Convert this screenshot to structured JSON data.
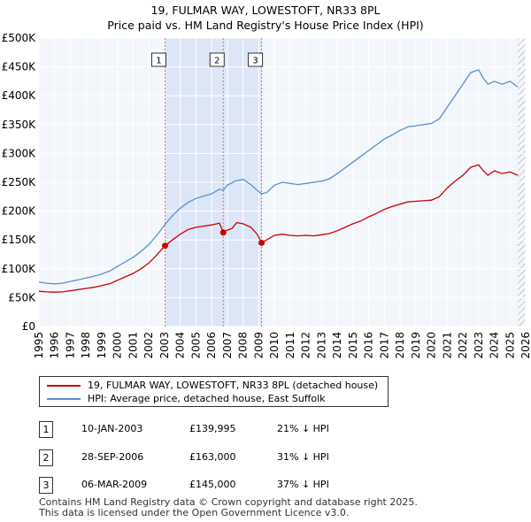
{
  "chart_data": {
    "type": "line",
    "title": "19, FULMAR WAY, LOWESTOFT, NR33 8PL",
    "subtitle": "Price paid vs. HM Land Registry's House Price Index (HPI)",
    "xlim": [
      1995,
      2026
    ],
    "ylim": [
      0,
      500000
    ],
    "x_ticks": [
      "1995",
      "1996",
      "1997",
      "1998",
      "1999",
      "2000",
      "2001",
      "2002",
      "2003",
      "2004",
      "2005",
      "2006",
      "2007",
      "2008",
      "2009",
      "2010",
      "2011",
      "2012",
      "2013",
      "2014",
      "2015",
      "2016",
      "2017",
      "2018",
      "2019",
      "2020",
      "2021",
      "2022",
      "2023",
      "2024",
      "2025",
      "2026"
    ],
    "y_ticks": [
      {
        "value": 0,
        "label": "£0"
      },
      {
        "value": 50000,
        "label": "£50K"
      },
      {
        "value": 100000,
        "label": "£100K"
      },
      {
        "value": 150000,
        "label": "£150K"
      },
      {
        "value": 200000,
        "label": "£200K"
      },
      {
        "value": 250000,
        "label": "£250K"
      },
      {
        "value": 300000,
        "label": "£300K"
      },
      {
        "value": 350000,
        "label": "£350K"
      },
      {
        "value": 400000,
        "label": "£400K"
      },
      {
        "value": 450000,
        "label": "£450K"
      },
      {
        "value": 500000,
        "label": "£500K"
      }
    ],
    "series": [
      {
        "name": "19, FULMAR WAY, LOWESTOFT, NR33 8PL (detached house)",
        "color": "#cc0000",
        "points": [
          [
            1995.0,
            61000
          ],
          [
            1995.5,
            60000
          ],
          [
            1996.0,
            59500
          ],
          [
            1996.5,
            60000
          ],
          [
            1997.0,
            62000
          ],
          [
            1997.5,
            64000
          ],
          [
            1998.0,
            66000
          ],
          [
            1998.5,
            68000
          ],
          [
            1999.0,
            71000
          ],
          [
            1999.5,
            74000
          ],
          [
            2000.0,
            80000
          ],
          [
            2000.5,
            86000
          ],
          [
            2001.0,
            92000
          ],
          [
            2001.5,
            100000
          ],
          [
            2002.0,
            110000
          ],
          [
            2002.5,
            124000
          ],
          [
            2003.03,
            139995
          ],
          [
            2003.5,
            150000
          ],
          [
            2004.0,
            160000
          ],
          [
            2004.5,
            168000
          ],
          [
            2005.0,
            172000
          ],
          [
            2005.5,
            174000
          ],
          [
            2006.0,
            176000
          ],
          [
            2006.5,
            179000
          ],
          [
            2006.74,
            163000
          ],
          [
            2007.0,
            167000
          ],
          [
            2007.3,
            170000
          ],
          [
            2007.6,
            180000
          ],
          [
            2008.0,
            178000
          ],
          [
            2008.5,
            172000
          ],
          [
            2008.9,
            160000
          ],
          [
            2009.18,
            145000
          ],
          [
            2009.5,
            150000
          ],
          [
            2010.0,
            158000
          ],
          [
            2010.5,
            160000
          ],
          [
            2011.0,
            158000
          ],
          [
            2011.5,
            157000
          ],
          [
            2012.0,
            158000
          ],
          [
            2012.5,
            157000
          ],
          [
            2013.0,
            159000
          ],
          [
            2013.5,
            161000
          ],
          [
            2014.0,
            166000
          ],
          [
            2014.5,
            172000
          ],
          [
            2015.0,
            178000
          ],
          [
            2015.5,
            183000
          ],
          [
            2016.0,
            190000
          ],
          [
            2016.5,
            196000
          ],
          [
            2017.0,
            203000
          ],
          [
            2017.5,
            208000
          ],
          [
            2018.0,
            212000
          ],
          [
            2018.5,
            216000
          ],
          [
            2019.0,
            217000
          ],
          [
            2019.5,
            218000
          ],
          [
            2020.0,
            219000
          ],
          [
            2020.5,
            225000
          ],
          [
            2021.0,
            240000
          ],
          [
            2021.5,
            252000
          ],
          [
            2022.0,
            262000
          ],
          [
            2022.5,
            276000
          ],
          [
            2023.0,
            280000
          ],
          [
            2023.3,
            270000
          ],
          [
            2023.6,
            262000
          ],
          [
            2024.0,
            270000
          ],
          [
            2024.5,
            265000
          ],
          [
            2025.0,
            268000
          ],
          [
            2025.5,
            262000
          ]
        ]
      },
      {
        "name": "HPI: Average price, detached house, East Suffolk",
        "color": "#5b8fd1",
        "points": [
          [
            1995.0,
            77000
          ],
          [
            1995.5,
            75000
          ],
          [
            1996.0,
            74000
          ],
          [
            1996.5,
            75000
          ],
          [
            1997.0,
            78000
          ],
          [
            1997.5,
            81000
          ],
          [
            1998.0,
            84000
          ],
          [
            1998.5,
            87000
          ],
          [
            1999.0,
            91000
          ],
          [
            1999.5,
            96000
          ],
          [
            2000.0,
            104000
          ],
          [
            2000.5,
            112000
          ],
          [
            2001.0,
            120000
          ],
          [
            2001.5,
            130000
          ],
          [
            2002.0,
            142000
          ],
          [
            2002.5,
            158000
          ],
          [
            2003.03,
            177000
          ],
          [
            2003.5,
            192000
          ],
          [
            2004.0,
            205000
          ],
          [
            2004.5,
            215000
          ],
          [
            2005.0,
            222000
          ],
          [
            2005.5,
            226000
          ],
          [
            2006.0,
            230000
          ],
          [
            2006.5,
            238000
          ],
          [
            2006.74,
            236000
          ],
          [
            2007.0,
            245000
          ],
          [
            2007.5,
            252000
          ],
          [
            2008.0,
            255000
          ],
          [
            2008.5,
            246000
          ],
          [
            2008.9,
            236000
          ],
          [
            2009.18,
            230000
          ],
          [
            2009.5,
            232000
          ],
          [
            2010.0,
            245000
          ],
          [
            2010.5,
            250000
          ],
          [
            2011.0,
            248000
          ],
          [
            2011.5,
            246000
          ],
          [
            2012.0,
            248000
          ],
          [
            2012.5,
            250000
          ],
          [
            2013.0,
            252000
          ],
          [
            2013.5,
            256000
          ],
          [
            2014.0,
            265000
          ],
          [
            2014.5,
            275000
          ],
          [
            2015.0,
            285000
          ],
          [
            2015.5,
            295000
          ],
          [
            2016.0,
            305000
          ],
          [
            2016.5,
            315000
          ],
          [
            2017.0,
            325000
          ],
          [
            2017.5,
            332000
          ],
          [
            2018.0,
            340000
          ],
          [
            2018.5,
            346000
          ],
          [
            2019.0,
            348000
          ],
          [
            2019.5,
            350000
          ],
          [
            2020.0,
            352000
          ],
          [
            2020.5,
            360000
          ],
          [
            2021.0,
            380000
          ],
          [
            2021.5,
            400000
          ],
          [
            2022.0,
            420000
          ],
          [
            2022.5,
            440000
          ],
          [
            2023.0,
            445000
          ],
          [
            2023.3,
            430000
          ],
          [
            2023.6,
            420000
          ],
          [
            2024.0,
            425000
          ],
          [
            2024.5,
            420000
          ],
          [
            2025.0,
            425000
          ],
          [
            2025.5,
            415000
          ]
        ]
      }
    ],
    "sales": [
      {
        "id": "1",
        "x": 2003.03,
        "price": 139995,
        "date": "10-JAN-2003",
        "price_label": "£139,995",
        "hpi": "21% ↓ HPI"
      },
      {
        "id": "2",
        "x": 2006.74,
        "price": 163000,
        "date": "28-SEP-2006",
        "price_label": "£163,000",
        "hpi": "31% ↓ HPI"
      },
      {
        "id": "3",
        "x": 2009.18,
        "price": 145000,
        "date": "06-MAR-2009",
        "price_label": "£145,000",
        "hpi": "37% ↓ HPI"
      }
    ],
    "shade_ranges": [
      [
        2003.03,
        2009.18
      ]
    ],
    "hatch_from": 2025.5
  },
  "legend": {
    "items": [
      {
        "label": "19, FULMAR WAY, LOWESTOFT, NR33 8PL (detached house)",
        "color": "#cc0000"
      },
      {
        "label": "HPI: Average price, detached house, East Suffolk",
        "color": "#5b8fd1"
      }
    ]
  },
  "footer": {
    "line1": "Contains HM Land Registry data © Crown copyright and database right 2025.",
    "line2": "This data is licensed under the Open Government Licence v3.0."
  }
}
